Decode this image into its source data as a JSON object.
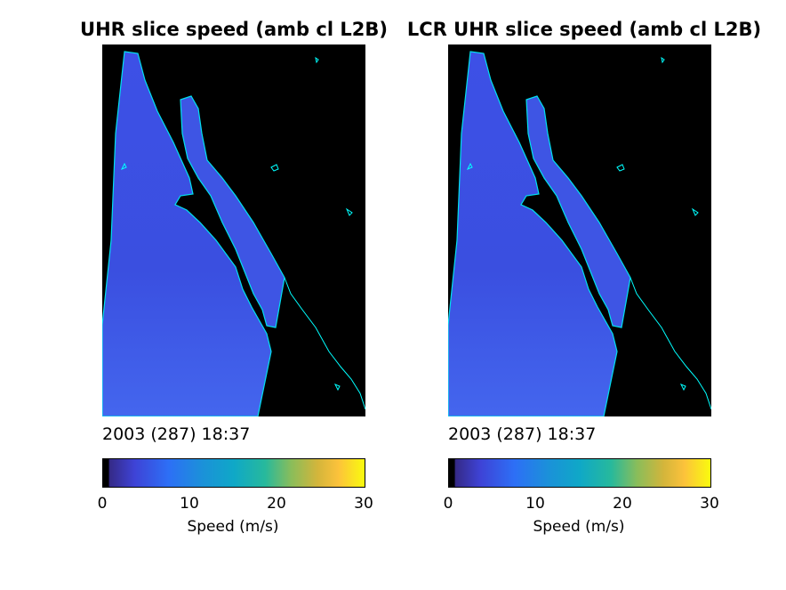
{
  "panels": [
    {
      "title": "UHR slice speed (amb cl L2B)",
      "timestamp": "2003 (287) 18:37",
      "colorbar": {
        "label": "Speed (m/s)",
        "ticks": [
          "0",
          "10",
          "20",
          "30"
        ]
      }
    },
    {
      "title": "LCR UHR slice speed (amb cl L2B)",
      "timestamp": "2003 (287) 18:37",
      "colorbar": {
        "label": "Speed (m/s)",
        "ticks": [
          "0",
          "10",
          "20",
          "30"
        ]
      }
    }
  ],
  "colors": {
    "land": "#000000",
    "coastline": "#00ffff",
    "ocean_dominant": "#3a4fe0",
    "colormap": "parula"
  },
  "chart_data": [
    {
      "type": "heatmap",
      "title": "UHR slice speed (amb cl L2B)",
      "quantity": "Speed (m/s)",
      "colorbar_range": [
        0,
        30
      ],
      "colorbar_ticks": [
        0,
        10,
        20,
        30
      ],
      "colormap": "parula",
      "typical_speed_range": [
        3,
        7
      ],
      "timestamp": "2003 (287) 18:37"
    },
    {
      "type": "heatmap",
      "title": "LCR UHR slice speed (amb cl L2B)",
      "quantity": "Speed (m/s)",
      "colorbar_range": [
        0,
        30
      ],
      "colorbar_ticks": [
        0,
        10,
        20,
        30
      ],
      "colormap": "parula",
      "typical_speed_range": [
        3,
        7
      ],
      "timestamp": "2003 (287) 18:37"
    }
  ]
}
